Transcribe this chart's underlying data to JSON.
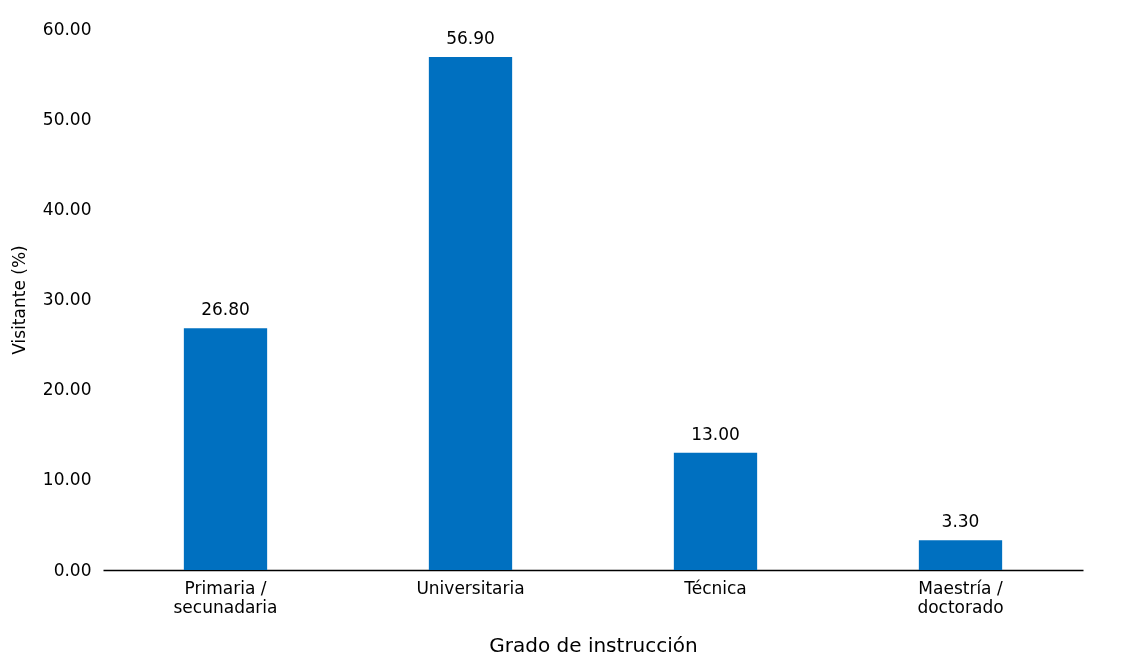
{
  "chart_data": {
    "type": "bar",
    "xlabel": "Grado de instrucción",
    "ylabel": "Visitante (%)",
    "categories": [
      "Primaria / secunadaria",
      "Universitaria",
      "Técnica",
      "Maestría / doctorado"
    ],
    "values": [
      26.8,
      56.9,
      13.0,
      3.3
    ],
    "value_labels": [
      "26.80",
      "56.90",
      "13.00",
      "3.30"
    ],
    "color": "#0070c0",
    "ylim": [
      0,
      60
    ],
    "yticks": [
      {
        "value": 0,
        "label": "0.00"
      },
      {
        "value": 10,
        "label": "10.00"
      },
      {
        "value": 20,
        "label": "20.00"
      },
      {
        "value": 30,
        "label": "30.00"
      },
      {
        "value": 40,
        "label": "40.00"
      },
      {
        "value": 50,
        "label": "50.00"
      },
      {
        "value": 60,
        "label": "60.00"
      }
    ],
    "grid": false
  }
}
